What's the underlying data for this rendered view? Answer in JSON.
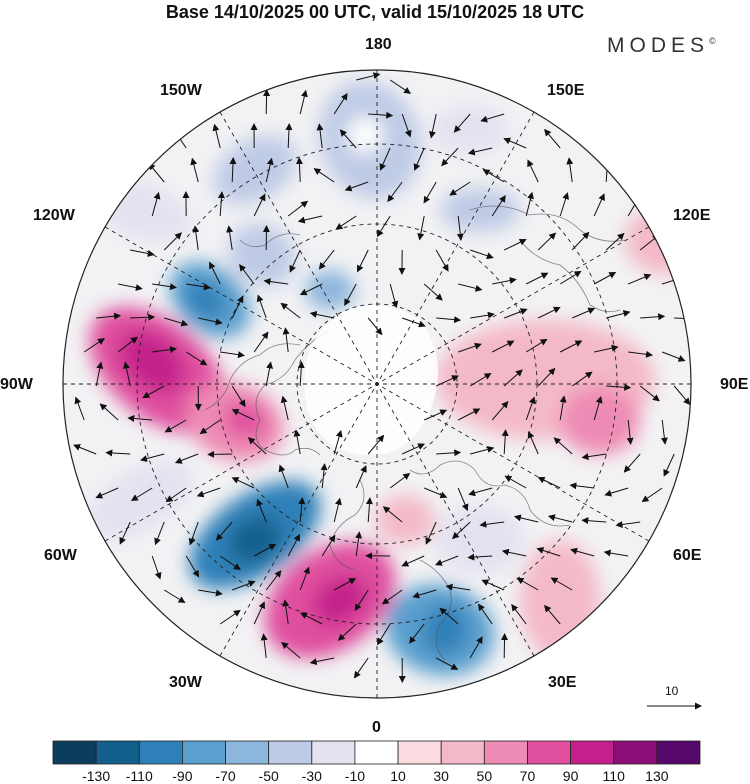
{
  "header": {
    "title": "Base 14/10/2025 00 UTC, valid 15/10/2025 18 UTC",
    "brand": "MODES",
    "brand_mark": "©"
  },
  "map": {
    "projection": "north-polar-stereographic",
    "longitude_labels": {
      "top": "180",
      "bottom": "0",
      "left": "90W",
      "right": "90E",
      "upper_left_1": "150W",
      "upper_left_2": "120W",
      "upper_right_1": "150E",
      "upper_right_2": "120E",
      "lower_left_1": "60W",
      "lower_left_2": "30W",
      "lower_right_1": "60E",
      "lower_right_2": "30E"
    },
    "vector_reference": {
      "value": "10"
    }
  },
  "colorbar": {
    "ticks": [
      "-130",
      "-110",
      "-90",
      "-70",
      "-50",
      "-30",
      "-10",
      "10",
      "30",
      "50",
      "70",
      "90",
      "110",
      "130"
    ],
    "colors": [
      "#0d3d5c",
      "#14608c",
      "#2e80b8",
      "#5a9fce",
      "#8db6dc",
      "#bfcbe6",
      "#e4e2f0",
      "#ffffff",
      "#f9dbe0",
      "#f4b9c8",
      "#ee8bb4",
      "#e0509f",
      "#c4208b",
      "#8c0f78",
      "#56086a"
    ]
  }
}
